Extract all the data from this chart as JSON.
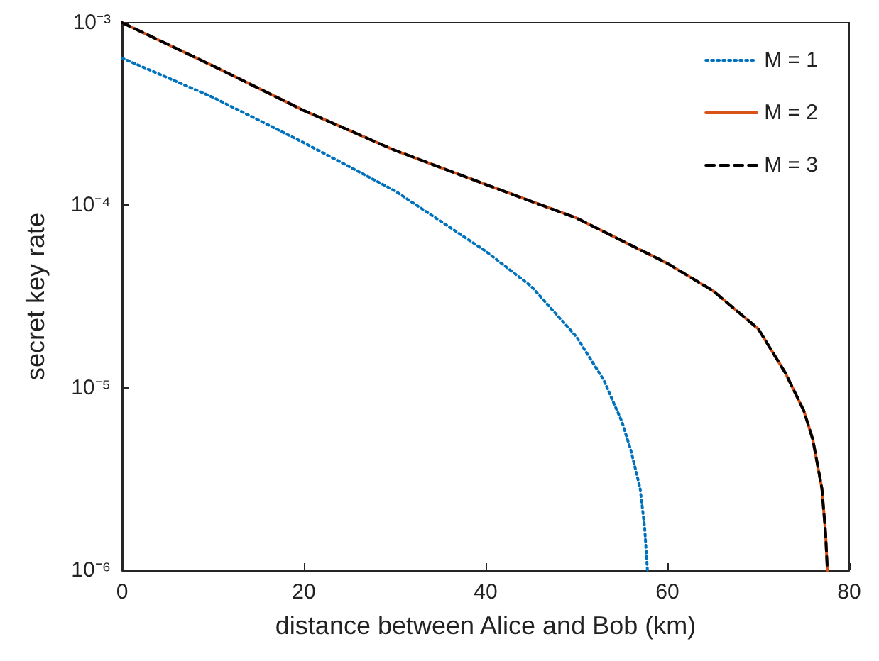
{
  "chart_data": {
    "type": "line",
    "xlabel": "distance between Alice and Bob (km)",
    "ylabel": "secret key rate",
    "log": "y",
    "xlim": [
      0,
      80
    ],
    "xticks": [
      0,
      20,
      40,
      60,
      80
    ],
    "ylim": [
      1e-06,
      0.001
    ],
    "yticks": [
      {
        "value": 1e-06,
        "label": "10⁻⁶"
      },
      {
        "value": 1e-05,
        "label": "10⁻⁵"
      },
      {
        "value": 0.0001,
        "label": "10⁻⁴"
      },
      {
        "value": 0.001,
        "label": "10⁻³"
      }
    ],
    "grid": false,
    "legend": "top right",
    "series": [
      {
        "name": "M = 1",
        "color": "#0072bd",
        "line_style": "dotted",
        "x": [
          0,
          10,
          20,
          30,
          40,
          45,
          50,
          53,
          55,
          56,
          57,
          57.5,
          57.8
        ],
        "values": [
          0.00064,
          0.00039,
          0.00022,
          0.00012,
          5.6e-05,
          3.6e-05,
          1.9e-05,
          1.1e-05,
          6.5e-06,
          4.5e-06,
          2.8e-06,
          1.7e-06,
          1e-06
        ]
      },
      {
        "name": "M = 2",
        "color": "#d95319",
        "line_style": "solid",
        "x": [
          0,
          10,
          20,
          30,
          40,
          50,
          60,
          65,
          70,
          73,
          75,
          76,
          77,
          77.4,
          77.6
        ],
        "values": [
          0.001,
          0.00058,
          0.00033,
          0.0002,
          0.00013,
          8.5e-05,
          4.8e-05,
          3.4e-05,
          2.1e-05,
          1.2e-05,
          7.5e-06,
          5.2e-06,
          2.8e-06,
          1.6e-06,
          1e-06
        ]
      },
      {
        "name": "M = 3",
        "color": "#000000",
        "line_style": "dashed",
        "x": [
          0,
          10,
          20,
          30,
          40,
          50,
          60,
          65,
          70,
          73,
          75,
          76,
          77,
          77.4,
          77.6
        ],
        "values": [
          0.001,
          0.00058,
          0.00033,
          0.0002,
          0.00013,
          8.5e-05,
          4.8e-05,
          3.4e-05,
          2.1e-05,
          1.2e-05,
          7.5e-06,
          5.2e-06,
          2.8e-06,
          1.6e-06,
          1e-06
        ]
      }
    ]
  }
}
